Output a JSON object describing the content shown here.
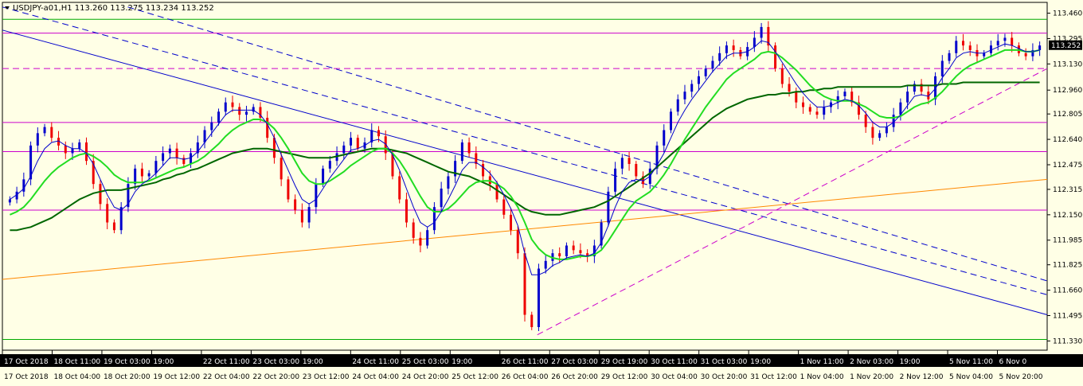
{
  "chart_data": {
    "type": "candlestick",
    "title": "USDJPY-a01,H1  113.260 113.275 113.234 113.252",
    "symbol_label": "USDJPY-a01,H1",
    "ohlc_readout": "113.260 113.275 113.234 113.252",
    "current_price": "113.252",
    "ylim": [
      111.27,
      113.53
    ],
    "y_ticks": [
      "113.460",
      "113.295",
      "113.130",
      "112.960",
      "112.805",
      "112.640",
      "112.475",
      "112.315",
      "112.150",
      "111.985",
      "111.825",
      "111.660",
      "111.495",
      "111.330"
    ],
    "x_ticks_top": [
      "17 Oct 2018",
      "18 Oct 11:00",
      "19 Oct 03:00",
      "19:00",
      "22 Oct 11:00",
      "23 Oct 03:00",
      "19:00",
      "24 Oct 11:00",
      "25 Oct 03:00",
      "19:00",
      "26 Oct 11:00",
      "27 Oct 03:00",
      "29 Oct 19:00",
      "30 Oct 11:00",
      "31 Oct 03:00",
      "19:00",
      "1 Nov 11:00",
      "2 Nov 03:00",
      "19:00",
      "5 Nov 11:00",
      "6 Nov 0"
    ],
    "x_ticks_bottom": [
      "17 Oct 2018",
      "18 Oct 04:00",
      "18 Oct 20:00",
      "19 Oct 12:00",
      "22 Oct 04:00",
      "22 Oct 20:00",
      "23 Oct 12:00",
      "24 Oct 04:00",
      "24 Oct 20:00",
      "25 Oct 12:00",
      "26 Oct 04:00",
      "26 Oct 20:00",
      "29 Oct 12:00",
      "30 Oct 04:00",
      "30 Oct 20:00",
      "31 Oct 12:00",
      "1 Nov 04:00",
      "1 Nov 20:00",
      "2 Nov 12:00",
      "5 Nov 04:00",
      "5 Nov 20:00"
    ],
    "close_path": [
      112.25,
      112.3,
      112.38,
      112.6,
      112.68,
      112.72,
      112.65,
      112.6,
      112.55,
      112.58,
      112.62,
      112.5,
      112.35,
      112.22,
      112.1,
      112.05,
      112.2,
      112.35,
      112.45,
      112.4,
      112.42,
      112.5,
      112.55,
      112.58,
      112.52,
      112.48,
      112.55,
      112.62,
      112.7,
      112.75,
      112.82,
      112.88,
      112.85,
      112.8,
      112.82,
      112.85,
      112.78,
      112.65,
      112.52,
      112.38,
      112.25,
      112.18,
      112.1,
      112.2,
      112.35,
      112.45,
      112.5,
      112.55,
      112.6,
      112.65,
      112.58,
      112.62,
      112.7,
      112.66,
      112.55,
      112.4,
      112.25,
      112.1,
      112.0,
      111.95,
      112.05,
      112.2,
      112.32,
      112.4,
      112.5,
      112.62,
      112.55,
      112.48,
      112.4,
      112.35,
      112.25,
      112.15,
      112.05,
      111.9,
      111.5,
      111.42,
      111.8,
      111.85,
      111.9,
      111.88,
      111.95,
      111.92,
      111.9,
      111.88,
      111.95,
      112.1,
      112.3,
      112.45,
      112.52,
      112.48,
      112.4,
      112.35,
      112.45,
      112.6,
      112.7,
      112.82,
      112.9,
      112.95,
      113.0,
      113.05,
      113.1,
      113.15,
      113.2,
      113.25,
      113.22,
      113.18,
      113.24,
      113.3,
      113.37,
      113.25,
      113.1,
      113.0,
      112.95,
      112.88,
      112.85,
      112.82,
      112.8,
      112.85,
      112.88,
      112.92,
      112.95,
      112.88,
      112.8,
      112.72,
      112.65,
      112.68,
      112.72,
      112.8,
      112.88,
      112.95,
      113.0,
      112.95,
      112.9,
      113.05,
      113.15,
      113.2,
      113.28,
      113.25,
      113.22,
      113.18,
      113.2,
      113.25,
      113.28,
      113.3,
      113.25,
      113.2,
      113.18,
      113.22,
      113.25
    ],
    "fast_ma": [
      112.25,
      112.28,
      112.32,
      112.4,
      112.5,
      112.58,
      112.62,
      112.63,
      112.6,
      112.58,
      112.58,
      112.55,
      112.48,
      112.38,
      112.28,
      112.2,
      112.18,
      112.22,
      112.3,
      112.35,
      112.38,
      112.42,
      112.47,
      112.52,
      112.52,
      112.51,
      112.52,
      112.56,
      112.62,
      112.68,
      112.74,
      112.8,
      112.83,
      112.83,
      112.83,
      112.83,
      112.8,
      112.74,
      112.65,
      112.54,
      112.44,
      112.34,
      112.25,
      112.22,
      112.25,
      112.32,
      112.39,
      112.45,
      112.51,
      112.57,
      112.58,
      112.6,
      112.63,
      112.64,
      112.61,
      112.54,
      112.44,
      112.32,
      112.2,
      112.1,
      112.07,
      112.1,
      112.17,
      112.25,
      112.34,
      112.44,
      112.49,
      112.49,
      112.46,
      112.42,
      112.36,
      112.28,
      112.19,
      112.08,
      111.9,
      111.76,
      111.76,
      111.78,
      111.82,
      111.84,
      111.87,
      111.88,
      111.89,
      111.88,
      111.9,
      111.97,
      112.08,
      112.2,
      112.3,
      112.36,
      112.38,
      112.37,
      112.4,
      112.47,
      112.55,
      112.65,
      112.75,
      112.83,
      112.9,
      112.96,
      113.02,
      113.08,
      113.13,
      113.18,
      113.2,
      113.2,
      113.21,
      113.24,
      113.28,
      113.27,
      113.21,
      113.14,
      113.07,
      113.0,
      112.94,
      112.89,
      112.85,
      112.85,
      112.86,
      112.88,
      112.9,
      112.89,
      112.86,
      112.81,
      112.75,
      112.72,
      112.72,
      112.75,
      112.8,
      112.86,
      112.92,
      112.93,
      112.92,
      112.97,
      113.04,
      113.1,
      113.17,
      113.2,
      113.21,
      113.2,
      113.2,
      113.22,
      113.24,
      113.26,
      113.25,
      113.23,
      113.21,
      113.21,
      113.22
    ],
    "medium_ma": [
      112.15,
      112.17,
      112.2,
      112.25,
      112.31,
      112.37,
      112.42,
      112.46,
      112.49,
      112.52,
      112.54,
      112.55,
      112.53,
      112.5,
      112.46,
      112.41,
      112.38,
      112.36,
      112.36,
      112.36,
      112.37,
      112.39,
      112.41,
      112.43,
      112.45,
      112.46,
      112.48,
      112.5,
      112.53,
      112.57,
      112.61,
      112.66,
      112.7,
      112.73,
      112.75,
      112.77,
      112.77,
      112.75,
      112.71,
      112.65,
      112.58,
      112.5,
      112.42,
      112.37,
      112.35,
      112.35,
      112.37,
      112.4,
      112.43,
      112.47,
      112.5,
      112.53,
      112.56,
      112.58,
      112.58,
      112.55,
      112.5,
      112.43,
      112.35,
      112.27,
      112.2,
      112.17,
      112.17,
      112.19,
      112.23,
      112.28,
      112.33,
      112.36,
      112.37,
      112.37,
      112.35,
      112.32,
      112.27,
      112.2,
      112.1,
      111.99,
      111.93,
      111.89,
      111.87,
      111.86,
      111.86,
      111.87,
      111.88,
      111.88,
      111.89,
      111.92,
      111.98,
      112.05,
      112.12,
      112.19,
      112.24,
      112.27,
      112.3,
      112.35,
      112.41,
      112.48,
      112.56,
      112.64,
      112.71,
      112.78,
      112.85,
      112.91,
      112.97,
      113.03,
      113.07,
      113.1,
      113.13,
      113.16,
      113.2,
      113.21,
      113.2,
      113.17,
      113.13,
      113.09,
      113.04,
      112.99,
      112.95,
      112.92,
      112.9,
      112.89,
      112.89,
      112.89,
      112.87,
      112.85,
      112.82,
      112.79,
      112.78,
      112.78,
      112.79,
      112.82,
      112.85,
      112.87,
      112.88,
      112.91,
      112.95,
      113.0,
      113.05,
      113.09,
      113.12,
      113.14,
      113.16,
      113.18,
      113.2,
      113.22,
      113.22,
      113.22,
      113.21,
      113.21,
      113.22
    ],
    "slow_ma": [
      112.05,
      112.05,
      112.06,
      112.07,
      112.09,
      112.11,
      112.13,
      112.16,
      112.19,
      112.22,
      112.25,
      112.27,
      112.29,
      112.3,
      112.31,
      112.31,
      112.31,
      112.32,
      112.33,
      112.34,
      112.35,
      112.36,
      112.38,
      112.39,
      112.41,
      112.42,
      112.44,
      112.45,
      112.47,
      112.49,
      112.51,
      112.53,
      112.55,
      112.56,
      112.57,
      112.58,
      112.58,
      112.58,
      112.57,
      112.56,
      112.55,
      112.54,
      112.53,
      112.52,
      112.52,
      112.52,
      112.52,
      112.53,
      112.54,
      112.55,
      112.56,
      112.57,
      112.58,
      112.58,
      112.58,
      112.57,
      112.56,
      112.55,
      112.53,
      112.51,
      112.49,
      112.47,
      112.45,
      112.43,
      112.42,
      112.41,
      112.4,
      112.38,
      112.36,
      112.34,
      112.31,
      112.28,
      112.25,
      112.22,
      112.19,
      112.17,
      112.16,
      112.15,
      112.15,
      112.15,
      112.16,
      112.17,
      112.18,
      112.19,
      112.2,
      112.22,
      112.24,
      112.27,
      112.3,
      112.33,
      112.36,
      112.39,
      112.42,
      112.46,
      112.5,
      112.54,
      112.58,
      112.62,
      112.66,
      112.7,
      112.74,
      112.78,
      112.81,
      112.84,
      112.86,
      112.88,
      112.9,
      112.91,
      112.92,
      112.93,
      112.93,
      112.94,
      112.94,
      112.95,
      112.95,
      112.96,
      112.96,
      112.97,
      112.97,
      112.98,
      112.98,
      112.98,
      112.98,
      112.98,
      112.98,
      112.98,
      112.98,
      112.98,
      112.98,
      112.99,
      112.99,
      112.99,
      112.99,
      112.99,
      113.0,
      113.0,
      113.0,
      113.01,
      113.01,
      113.01,
      113.01,
      113.01,
      113.01,
      113.01,
      113.01,
      113.01,
      113.01,
      113.01,
      113.01
    ],
    "horizontal_levels": [
      {
        "price": 113.42,
        "color": "#00aa00",
        "style": "solid"
      },
      {
        "price": 113.33,
        "color": "#cc00cc",
        "style": "solid"
      },
      {
        "price": 113.1,
        "color": "#cc00cc",
        "style": "dashed"
      },
      {
        "price": 112.75,
        "color": "#cc00cc",
        "style": "solid"
      },
      {
        "price": 112.56,
        "color": "#cc00cc",
        "style": "solid"
      },
      {
        "price": 112.18,
        "color": "#cc00cc",
        "style": "solid"
      },
      {
        "price": 111.34,
        "color": "#00aa00",
        "style": "solid"
      }
    ],
    "trend_lines": [
      {
        "from": [
          0,
          113.35
        ],
        "to": [
          1,
          111.5
        ],
        "color": "#0000cc",
        "style": "solid"
      },
      {
        "from": [
          0,
          113.5
        ],
        "to": [
          1,
          111.63
        ],
        "color": "#0000cc",
        "style": "dashed"
      },
      {
        "from": [
          0.12,
          113.5
        ],
        "to": [
          1,
          111.72
        ],
        "color": "#0000cc",
        "style": "dashed"
      },
      {
        "from": [
          0,
          111.73
        ],
        "to": [
          1,
          112.38
        ],
        "color": "#ff8800",
        "style": "solid"
      },
      {
        "from": [
          0.512,
          111.37
        ],
        "to": [
          1,
          113.1
        ],
        "color": "#cc00cc",
        "style": "dashed"
      }
    ],
    "colors": {
      "bull": "#0000cc",
      "bear": "#ee0000",
      "fast_ma": "#0000cc",
      "medium_ma": "#22dd22",
      "slow_ma": "#006600",
      "background": "#ffffe6",
      "price_label_bg": "#000000"
    },
    "grid": false
  }
}
